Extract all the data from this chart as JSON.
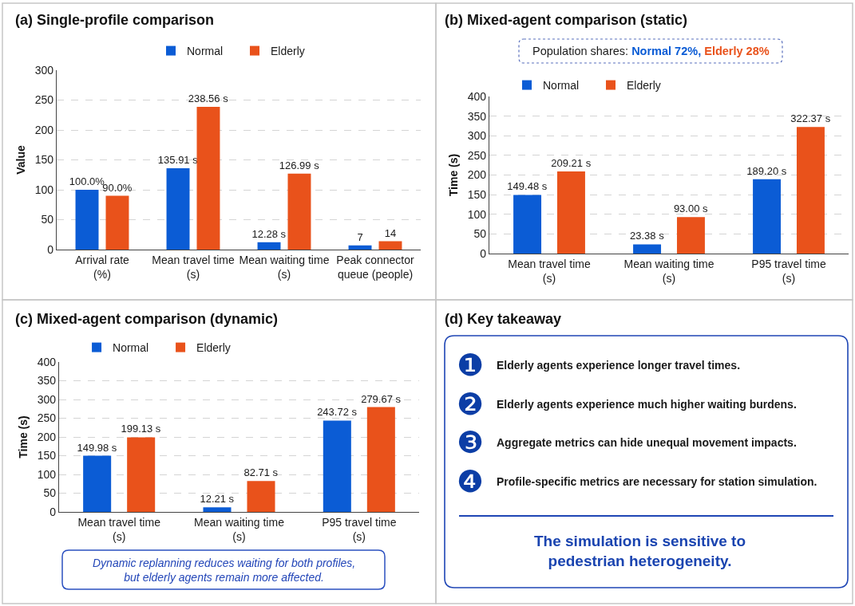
{
  "chart_data": [
    {
      "type": "bar",
      "title": "(a) Single-profile comparison",
      "ylabel": "Value",
      "categories": [
        "Arrival rate\n(%)",
        "Mean travel time\n(s)",
        "Mean waiting time\n(s)",
        "Peak connector\nqueue (people)"
      ],
      "series": [
        {
          "name": "Normal",
          "color": "#0b5cd5",
          "values": [
            100.0,
            135.91,
            12.28,
            7
          ],
          "value_labels": [
            "100.0%",
            "135.91 s",
            "12.28 s",
            "7"
          ]
        },
        {
          "name": "Elderly",
          "color": "#e9521b",
          "values": [
            90.0,
            238.56,
            126.99,
            14
          ],
          "value_labels": [
            "90.0%",
            "238.56 s",
            "126.99 s",
            "14"
          ]
        }
      ],
      "ylim": [
        0,
        300
      ],
      "yticks": [
        0,
        50,
        100,
        150,
        200,
        250,
        300
      ],
      "grid": "y",
      "legend": "top"
    },
    {
      "type": "bar",
      "title": "(b) Mixed-agent comparison (static)",
      "ylabel": "Time (s)",
      "categories": [
        "Mean travel time\n(s)",
        "Mean waiting time\n(s)",
        "P95 travel time\n(s)"
      ],
      "series": [
        {
          "name": "Normal",
          "color": "#0b5cd5",
          "values": [
            149.48,
            23.38,
            189.2
          ],
          "value_labels": [
            "149.48 s",
            "23.38 s",
            "189.20 s"
          ]
        },
        {
          "name": "Elderly",
          "color": "#e9521b",
          "values": [
            209.21,
            93.0,
            322.37
          ],
          "value_labels": [
            "209.21 s",
            "93.00 s",
            "322.37 s"
          ]
        }
      ],
      "ylim": [
        0,
        400
      ],
      "yticks": [
        0,
        50,
        100,
        150,
        200,
        250,
        300,
        350,
        400
      ],
      "grid": "y",
      "legend": "top left",
      "annotations": [
        "Population shares: Normal 72%, Elderly 28%"
      ]
    },
    {
      "type": "bar",
      "title": "(c) Mixed-agent comparison (dynamic)",
      "ylabel": "Time (s)",
      "categories": [
        "Mean travel time\n(s)",
        "Mean waiting time\n(s)",
        "P95 travel time\n(s)"
      ],
      "series": [
        {
          "name": "Normal",
          "color": "#0b5cd5",
          "values": [
            149.98,
            12.21,
            243.72
          ],
          "value_labels": [
            "149.98 s",
            "12.21 s",
            "243.72 s"
          ]
        },
        {
          "name": "Elderly",
          "color": "#e9521b",
          "values": [
            199.13,
            82.71,
            279.67
          ],
          "value_labels": [
            "199.13 s",
            "82.71 s",
            "279.67 s"
          ]
        }
      ],
      "ylim": [
        0,
        400
      ],
      "yticks": [
        0,
        50,
        100,
        150,
        200,
        250,
        300,
        350,
        400
      ],
      "grid": "y",
      "legend": "top left",
      "annotations": [
        "Dynamic replanning reduces waiting for both profiles, but elderly agents remain more affected."
      ]
    },
    {
      "type": "other",
      "title": "(d) Key takeaway",
      "annotations": [
        "❶",
        "Elderly agents experience longer travel times.",
        "❷",
        "Elderly agents experience much higher waiting burdens.",
        "❸",
        "Aggregate metrics can hide unequal movement impacts.",
        "❹",
        "Profile-specific metrics are necessary for station simulation.",
        "The simulation is sensitive to pedestrian heterogeneity."
      ]
    }
  ]
}
